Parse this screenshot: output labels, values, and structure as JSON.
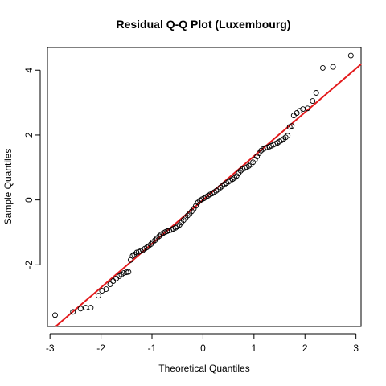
{
  "chart_data": {
    "type": "scatter",
    "title": "Residual Q-Q Plot (Luxembourg)",
    "xlabel": "Theoretical Quantiles",
    "ylabel": "Sample Quantiles",
    "xlim": [
      -3.05,
      3.1
    ],
    "ylim": [
      -3.9,
      4.7
    ],
    "xticks": [
      -3,
      -2,
      -1,
      0,
      1,
      2,
      3
    ],
    "yticks": [
      -2,
      0,
      2,
      4
    ],
    "reference_line": {
      "intercept": 0.0,
      "slope": 1.35,
      "color": "#e31a1c"
    },
    "point_color": "#000000",
    "points": [
      [
        -2.9,
        -3.55
      ],
      [
        -2.55,
        -3.45
      ],
      [
        -2.4,
        -3.35
      ],
      [
        -2.3,
        -3.32
      ],
      [
        -2.2,
        -3.32
      ],
      [
        -2.05,
        -2.95
      ],
      [
        -1.98,
        -2.8
      ],
      [
        -1.9,
        -2.75
      ],
      [
        -1.82,
        -2.6
      ],
      [
        -1.76,
        -2.5
      ],
      [
        -1.7,
        -2.42
      ],
      [
        -1.64,
        -2.35
      ],
      [
        -1.6,
        -2.3
      ],
      [
        -1.55,
        -2.25
      ],
      [
        -1.5,
        -2.23
      ],
      [
        -1.46,
        -2.22
      ],
      [
        -1.42,
        -1.85
      ],
      [
        -1.38,
        -1.72
      ],
      [
        -1.35,
        -1.68
      ],
      [
        -1.3,
        -1.62
      ],
      [
        -1.26,
        -1.6
      ],
      [
        -1.22,
        -1.57
      ],
      [
        -1.18,
        -1.55
      ],
      [
        -1.14,
        -1.5
      ],
      [
        -1.1,
        -1.46
      ],
      [
        -1.06,
        -1.42
      ],
      [
        -1.02,
        -1.36
      ],
      [
        -0.98,
        -1.3
      ],
      [
        -0.94,
        -1.24
      ],
      [
        -0.9,
        -1.18
      ],
      [
        -0.86,
        -1.12
      ],
      [
        -0.82,
        -1.06
      ],
      [
        -0.78,
        -1.02
      ],
      [
        -0.74,
        -0.99
      ],
      [
        -0.7,
        -0.96
      ],
      [
        -0.66,
        -0.94
      ],
      [
        -0.62,
        -0.92
      ],
      [
        -0.58,
        -0.89
      ],
      [
        -0.54,
        -0.86
      ],
      [
        -0.5,
        -0.82
      ],
      [
        -0.46,
        -0.77
      ],
      [
        -0.42,
        -0.7
      ],
      [
        -0.38,
        -0.62
      ],
      [
        -0.34,
        -0.55
      ],
      [
        -0.3,
        -0.48
      ],
      [
        -0.26,
        -0.42
      ],
      [
        -0.22,
        -0.35
      ],
      [
        -0.18,
        -0.27
      ],
      [
        -0.14,
        -0.18
      ],
      [
        -0.1,
        -0.08
      ],
      [
        -0.06,
        -0.02
      ],
      [
        -0.02,
        0.02
      ],
      [
        0.02,
        0.05
      ],
      [
        0.06,
        0.09
      ],
      [
        0.1,
        0.13
      ],
      [
        0.14,
        0.17
      ],
      [
        0.18,
        0.2
      ],
      [
        0.22,
        0.24
      ],
      [
        0.26,
        0.28
      ],
      [
        0.3,
        0.33
      ],
      [
        0.34,
        0.38
      ],
      [
        0.38,
        0.43
      ],
      [
        0.42,
        0.48
      ],
      [
        0.46,
        0.52
      ],
      [
        0.5,
        0.56
      ],
      [
        0.54,
        0.6
      ],
      [
        0.58,
        0.64
      ],
      [
        0.62,
        0.68
      ],
      [
        0.66,
        0.74
      ],
      [
        0.7,
        0.82
      ],
      [
        0.74,
        0.9
      ],
      [
        0.78,
        0.95
      ],
      [
        0.82,
        0.98
      ],
      [
        0.86,
        1.01
      ],
      [
        0.9,
        1.05
      ],
      [
        0.94,
        1.1
      ],
      [
        0.98,
        1.16
      ],
      [
        1.02,
        1.24
      ],
      [
        1.06,
        1.34
      ],
      [
        1.1,
        1.44
      ],
      [
        1.14,
        1.52
      ],
      [
        1.18,
        1.57
      ],
      [
        1.22,
        1.6
      ],
      [
        1.26,
        1.62
      ],
      [
        1.3,
        1.64
      ],
      [
        1.34,
        1.67
      ],
      [
        1.38,
        1.7
      ],
      [
        1.42,
        1.73
      ],
      [
        1.46,
        1.76
      ],
      [
        1.5,
        1.8
      ],
      [
        1.54,
        1.84
      ],
      [
        1.58,
        1.88
      ],
      [
        1.62,
        1.93
      ],
      [
        1.66,
        1.98
      ],
      [
        1.7,
        2.25
      ],
      [
        1.74,
        2.28
      ],
      [
        1.78,
        2.6
      ],
      [
        1.84,
        2.68
      ],
      [
        1.9,
        2.75
      ],
      [
        1.96,
        2.8
      ],
      [
        2.05,
        2.82
      ],
      [
        2.15,
        3.05
      ],
      [
        2.22,
        3.3
      ],
      [
        2.35,
        4.07
      ],
      [
        2.55,
        4.1
      ],
      [
        2.9,
        4.45
      ]
    ]
  }
}
